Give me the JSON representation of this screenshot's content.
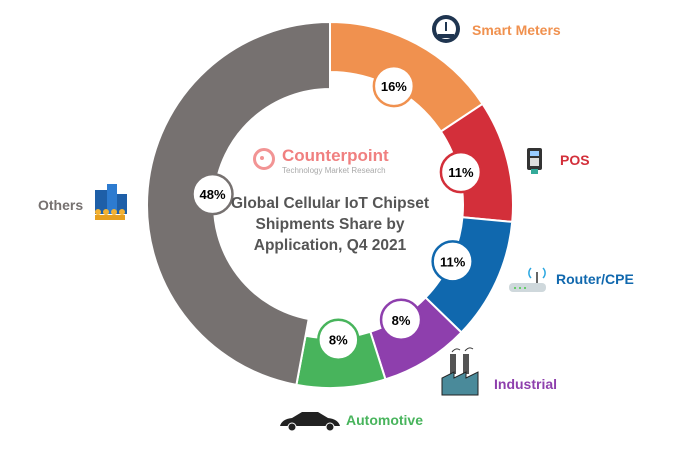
{
  "chart_data": {
    "type": "pie",
    "variant": "donut",
    "title": "Global Cellular IoT Chipset Shipments Share by Application, Q4 2021",
    "categories": [
      "Smart Meters",
      "POS",
      "Router/CPE",
      "Industrial",
      "Automotive",
      "Others"
    ],
    "values": [
      16,
      11,
      11,
      8,
      8,
      48
    ],
    "data_labels": [
      "16%",
      "11%",
      "11%",
      "8%",
      "8%",
      "48%"
    ],
    "colors": [
      "#f0914f",
      "#d32f3a",
      "#1068ae",
      "#8e3fad",
      "#48b45c",
      "#767170"
    ],
    "icons": [
      "gauge-meter-icon",
      "pos-terminal-icon",
      "router-icon",
      "factory-icon",
      "car-icon",
      "buildings-people-icon"
    ]
  },
  "brand": {
    "name": "Counterpoint",
    "tagline": "Technology Market Research"
  },
  "title_lines": [
    "Global Cellular IoT Chipset",
    "Shipments Share by",
    "Application, Q4 2021"
  ]
}
